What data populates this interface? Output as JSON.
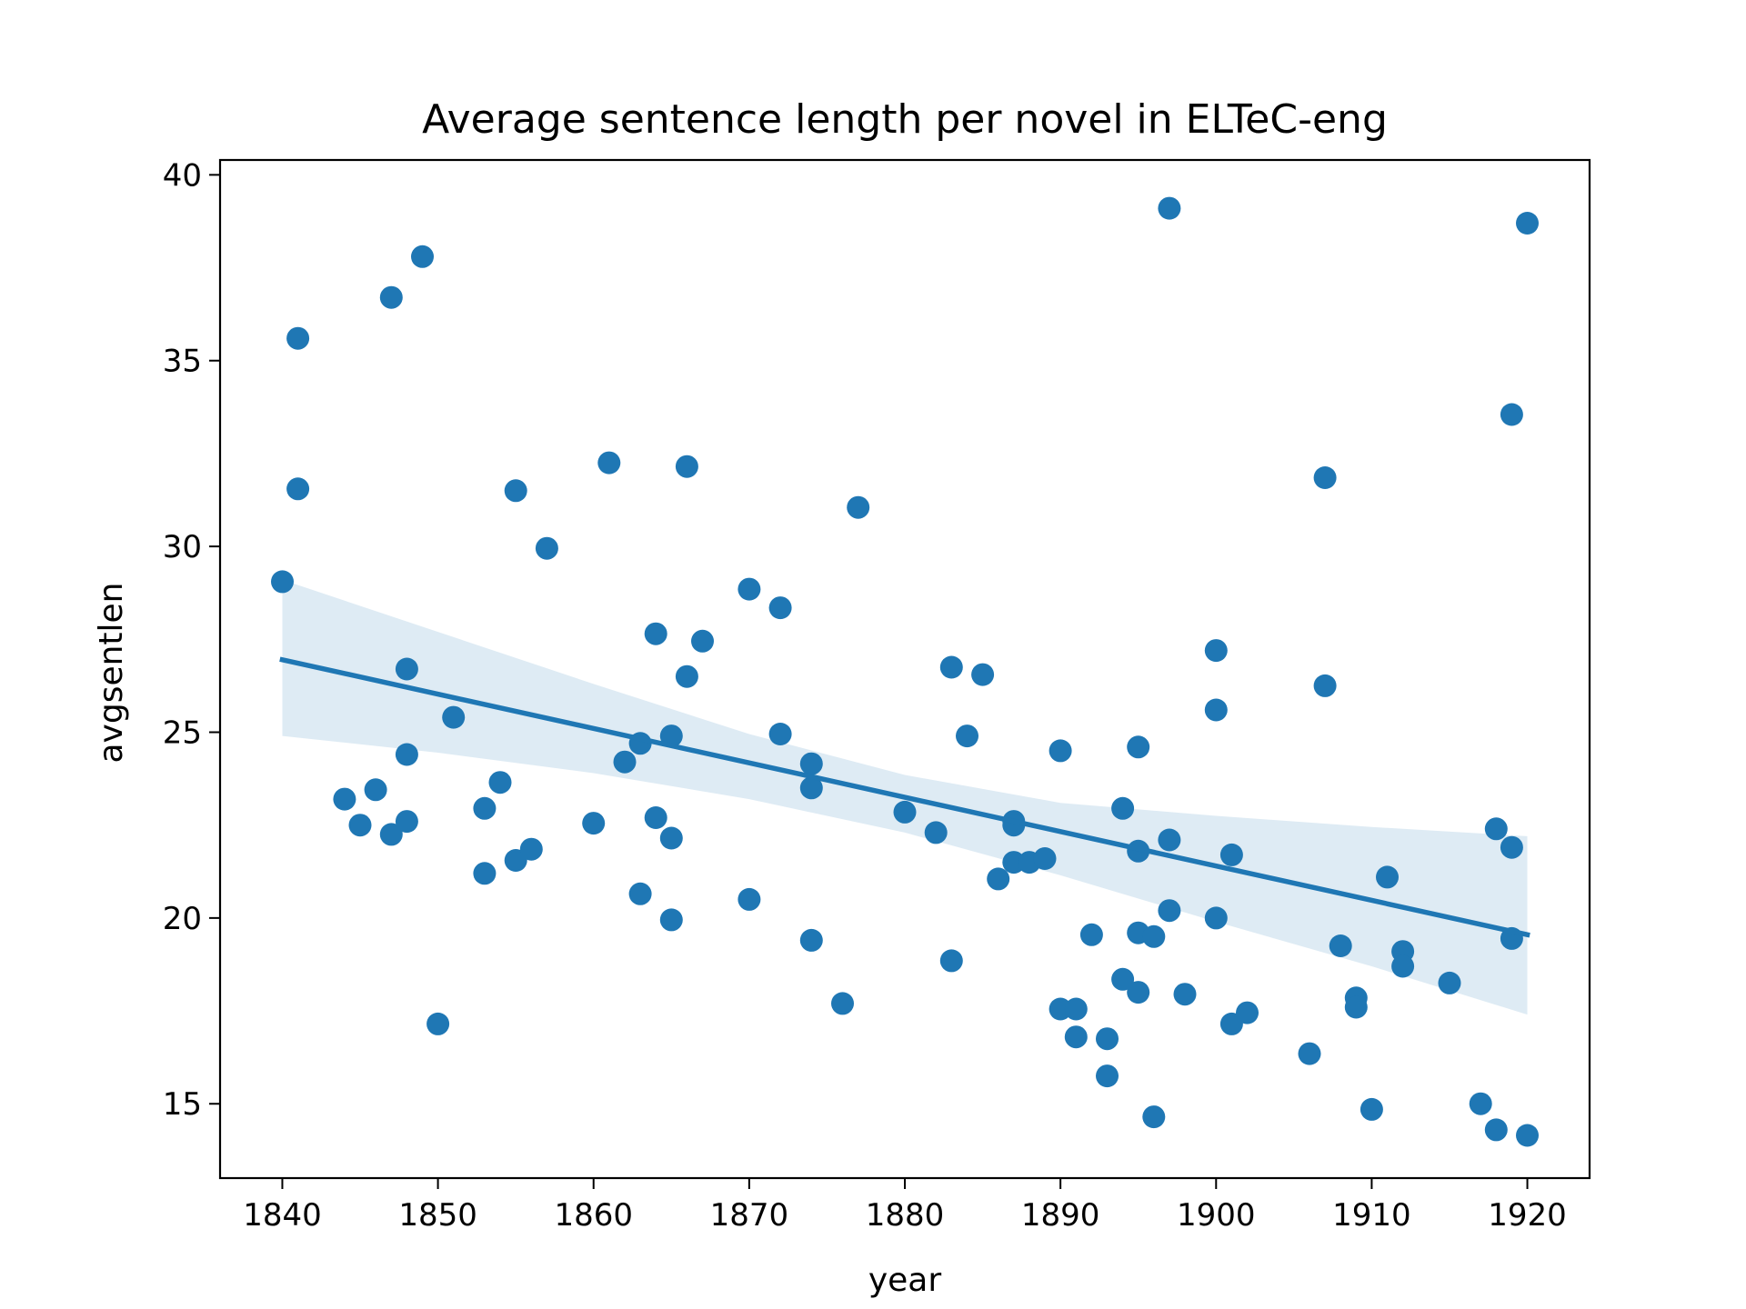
{
  "chart_data": {
    "type": "scatter",
    "title": "Average sentence length per novel in ELTeC-eng",
    "xlabel": "year",
    "ylabel": "avgsentlen",
    "xlim": [
      1836,
      1924
    ],
    "ylim": [
      13,
      40.4
    ],
    "xticks": [
      1840,
      1850,
      1860,
      1870,
      1880,
      1890,
      1900,
      1910,
      1920
    ],
    "yticks": [
      15,
      20,
      25,
      30,
      35,
      40
    ],
    "grid": false,
    "colors": {
      "points": "#1f77b4",
      "line": "#1f77b4",
      "band": "#1f77b4"
    },
    "series": [
      {
        "points": [
          [
            1840,
            29.05
          ],
          [
            1841,
            35.6
          ],
          [
            1841,
            31.55
          ],
          [
            1844,
            23.2
          ],
          [
            1845,
            22.5
          ],
          [
            1846,
            23.45
          ],
          [
            1847,
            36.7
          ],
          [
            1847,
            22.25
          ],
          [
            1848,
            26.7
          ],
          [
            1848,
            24.4
          ],
          [
            1848,
            22.6
          ],
          [
            1849,
            37.8
          ],
          [
            1850,
            17.15
          ],
          [
            1851,
            25.4
          ],
          [
            1853,
            22.95
          ],
          [
            1853,
            21.2
          ],
          [
            1854,
            23.65
          ],
          [
            1855,
            31.5
          ],
          [
            1855,
            21.55
          ],
          [
            1856,
            21.85
          ],
          [
            1857,
            29.95
          ],
          [
            1860,
            22.55
          ],
          [
            1861,
            32.25
          ],
          [
            1862,
            24.2
          ],
          [
            1863,
            24.7
          ],
          [
            1863,
            20.65
          ],
          [
            1864,
            27.65
          ],
          [
            1864,
            22.7
          ],
          [
            1865,
            24.9
          ],
          [
            1865,
            22.15
          ],
          [
            1865,
            19.95
          ],
          [
            1866,
            32.15
          ],
          [
            1866,
            26.5
          ],
          [
            1867,
            27.45
          ],
          [
            1870,
            28.85
          ],
          [
            1870,
            20.5
          ],
          [
            1872,
            28.35
          ],
          [
            1872,
            24.95
          ],
          [
            1874,
            24.15
          ],
          [
            1874,
            23.5
          ],
          [
            1874,
            19.4
          ],
          [
            1876,
            17.7
          ],
          [
            1877,
            31.05
          ],
          [
            1880,
            22.85
          ],
          [
            1882,
            22.3
          ],
          [
            1883,
            26.75
          ],
          [
            1883,
            18.85
          ],
          [
            1884,
            24.9
          ],
          [
            1885,
            26.55
          ],
          [
            1886,
            21.05
          ],
          [
            1887,
            22.6
          ],
          [
            1887,
            22.5
          ],
          [
            1887,
            21.5
          ],
          [
            1888,
            21.5
          ],
          [
            1889,
            21.6
          ],
          [
            1890,
            24.5
          ],
          [
            1890,
            17.55
          ],
          [
            1891,
            17.55
          ],
          [
            1891,
            16.8
          ],
          [
            1892,
            19.55
          ],
          [
            1893,
            16.75
          ],
          [
            1893,
            15.75
          ],
          [
            1894,
            22.95
          ],
          [
            1894,
            18.35
          ],
          [
            1895,
            24.6
          ],
          [
            1895,
            21.8
          ],
          [
            1895,
            19.6
          ],
          [
            1895,
            18.0
          ],
          [
            1896,
            19.5
          ],
          [
            1896,
            14.65
          ],
          [
            1897,
            39.1
          ],
          [
            1897,
            22.1
          ],
          [
            1897,
            20.2
          ],
          [
            1898,
            17.95
          ],
          [
            1900,
            27.2
          ],
          [
            1900,
            25.6
          ],
          [
            1900,
            20.0
          ],
          [
            1901,
            21.7
          ],
          [
            1901,
            17.15
          ],
          [
            1902,
            17.45
          ],
          [
            1906,
            16.35
          ],
          [
            1907,
            31.85
          ],
          [
            1907,
            26.25
          ],
          [
            1908,
            19.25
          ],
          [
            1909,
            17.85
          ],
          [
            1909,
            17.6
          ],
          [
            1910,
            14.85
          ],
          [
            1911,
            21.1
          ],
          [
            1912,
            19.1
          ],
          [
            1912,
            18.7
          ],
          [
            1915,
            18.25
          ],
          [
            1917,
            15.0
          ],
          [
            1918,
            22.4
          ],
          [
            1918,
            14.3
          ],
          [
            1919,
            33.55
          ],
          [
            1919,
            21.9
          ],
          [
            1919,
            19.45
          ],
          [
            1920,
            38.7
          ],
          [
            1920,
            14.15
          ]
        ]
      }
    ],
    "regression": {
      "line": [
        [
          1840,
          26.95
        ],
        [
          1920,
          19.55
        ]
      ],
      "ci_upper": [
        [
          1840,
          29.1
        ],
        [
          1850,
          27.7
        ],
        [
          1860,
          26.3
        ],
        [
          1870,
          24.95
        ],
        [
          1880,
          23.85
        ],
        [
          1890,
          23.1
        ],
        [
          1900,
          22.75
        ],
        [
          1910,
          22.45
        ],
        [
          1920,
          22.2
        ]
      ],
      "ci_lower": [
        [
          1840,
          24.9
        ],
        [
          1850,
          24.45
        ],
        [
          1860,
          23.9
        ],
        [
          1870,
          23.2
        ],
        [
          1880,
          22.3
        ],
        [
          1890,
          21.15
        ],
        [
          1900,
          19.9
        ],
        [
          1910,
          18.7
        ],
        [
          1920,
          17.4
        ]
      ]
    }
  }
}
